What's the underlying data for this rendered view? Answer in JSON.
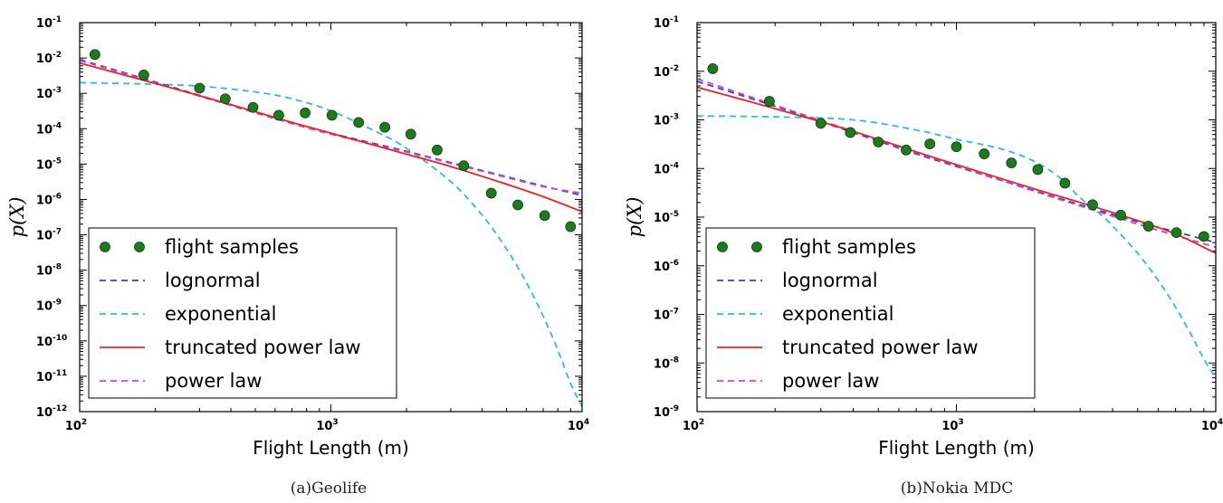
{
  "chart_data": [
    {
      "type": "scatter",
      "caption": "(a)Geolife",
      "xlabel": "Flight Length (m)",
      "ylabel": "p(X)",
      "xscale": "log",
      "yscale": "log",
      "xlim": [
        100,
        10000
      ],
      "ylim": [
        1e-12,
        0.1
      ],
      "x_ticks": [
        "2",
        "3",
        "4"
      ],
      "y_ticks": [
        "-12",
        "-11",
        "-10",
        "-9",
        "-8",
        "-7",
        "-6",
        "-5",
        "-4",
        "-3",
        "-2",
        "-1"
      ],
      "tick_base": "10",
      "legend_position": "lower-left",
      "grid": false,
      "series": [
        {
          "name": "flight samples",
          "kind": "points",
          "color": "#1f7a1f",
          "x": [
            115,
            180,
            300,
            380,
            490,
            620,
            790,
            1010,
            1290,
            1640,
            2080,
            2650,
            3380,
            4350,
            5550,
            7100,
            9000
          ],
          "y": [
            0.0125,
            0.0033,
            0.0014,
            0.0007,
            0.0004,
            0.00024,
            0.00028,
            0.00024,
            0.00015,
            0.00011,
            7e-05,
            2.5e-05,
            9e-06,
            1.5e-06,
            7e-07,
            3.5e-07,
            1.7e-07
          ]
        },
        {
          "name": "lognormal",
          "kind": "dashed",
          "color": "#3b3bd0",
          "x": [
            100,
            200,
            400,
            700,
            1000,
            2000,
            3000,
            5000,
            7000,
            10000
          ],
          "y": [
            0.009,
            0.0021,
            0.00047,
            0.00015,
            7.5e-05,
            2.3e-05,
            1.1e-05,
            4.4e-06,
            2.4e-06,
            1.3e-06
          ]
        },
        {
          "name": "exponential",
          "kind": "dashed",
          "color": "#2cc0c6",
          "x": [
            100,
            150,
            200,
            300,
            500,
            700,
            1000,
            1500,
            2000,
            3000,
            4000,
            5000,
            6000,
            7000,
            8000,
            9000,
            10000
          ],
          "y": [
            0.002,
            0.0019,
            0.0018,
            0.0016,
            0.0011,
            0.0007,
            0.00032,
            8.5e-05,
            2.8e-05,
            3.2e-06,
            3.6e-07,
            4e-08,
            4.5e-09,
            5e-10,
            5.6e-11,
            6.3e-12,
            1.4e-12
          ]
        },
        {
          "name": "truncated power law",
          "kind": "solid",
          "color": "#ee2222",
          "x": [
            100,
            200,
            400,
            700,
            1000,
            2000,
            3000,
            5000,
            7000,
            10000
          ],
          "y": [
            0.0072,
            0.0019,
            0.00048,
            0.00015,
            7.5e-05,
            1.9e-05,
            8.5e-06,
            2.7e-06,
            1.2e-06,
            4.5e-07
          ]
        },
        {
          "name": "power law",
          "kind": "dashed",
          "color": "#cc44cc",
          "x": [
            100,
            200,
            400,
            700,
            1000,
            2000,
            3000,
            5000,
            7000,
            10000
          ],
          "y": [
            0.0085,
            0.002,
            0.00045,
            0.00014,
            7e-05,
            2.2e-05,
            1.05e-05,
            4.2e-06,
            2.3e-06,
            1.5e-06
          ]
        }
      ]
    },
    {
      "type": "scatter",
      "caption": "(b)Nokia MDC",
      "xlabel": "Flight Length (m)",
      "ylabel": "p(X)",
      "xscale": "log",
      "yscale": "log",
      "xlim": [
        100,
        10000
      ],
      "ylim": [
        1e-09,
        0.1
      ],
      "x_ticks": [
        "2",
        "3",
        "4"
      ],
      "y_ticks": [
        "-9",
        "-8",
        "-7",
        "-6",
        "-5",
        "-4",
        "-3",
        "-2",
        "-1"
      ],
      "tick_base": "10",
      "legend_position": "lower-left",
      "grid": false,
      "series": [
        {
          "name": "flight samples",
          "kind": "points",
          "color": "#1f7a1f",
          "x": [
            115,
            190,
            300,
            390,
            500,
            640,
            790,
            1000,
            1280,
            1630,
            2060,
            2620,
            3350,
            4300,
            5500,
            7050,
            9000
          ],
          "y": [
            0.0113,
            0.0024,
            0.00085,
            0.00055,
            0.00035,
            0.00024,
            0.00032,
            0.00028,
            0.0002,
            0.00013,
            9.5e-05,
            5e-05,
            1.8e-05,
            1.1e-05,
            6.5e-06,
            4.8e-06,
            4e-06
          ]
        },
        {
          "name": "lognormal",
          "kind": "dashed",
          "color": "#3b3bd0",
          "x": [
            100,
            200,
            400,
            700,
            1000,
            2000,
            3000,
            5000,
            7000,
            10000
          ],
          "y": [
            0.0062,
            0.0019,
            0.00055,
            0.0002,
            0.00011,
            3.5e-05,
            1.8e-05,
            8e-06,
            5e-06,
            3e-06
          ]
        },
        {
          "name": "exponential",
          "kind": "dashed",
          "color": "#2cc0c6",
          "x": [
            100,
            200,
            400,
            700,
            1000,
            1500,
            2000,
            2500,
            3000,
            3500,
            4000,
            5000,
            6000,
            7000,
            8000,
            9000,
            10000
          ],
          "y": [
            0.0012,
            0.00115,
            0.001,
            0.00062,
            0.0004,
            0.00025,
            0.00014,
            6.5e-05,
            2.5e-05,
            1.3e-05,
            6.6e-06,
            1.8e-06,
            5e-07,
            1.4e-07,
            4e-08,
            1.2e-08,
            5e-09
          ]
        },
        {
          "name": "truncated power law",
          "kind": "solid",
          "color": "#ee2222",
          "x": [
            100,
            200,
            400,
            700,
            1000,
            2000,
            3000,
            5000,
            7000,
            10000
          ],
          "y": [
            0.0047,
            0.0017,
            0.00058,
            0.00022,
            0.00012,
            3.8e-05,
            2e-05,
            8.5e-06,
            4.5e-06,
            1.8e-06
          ]
        },
        {
          "name": "power law",
          "kind": "dashed",
          "color": "#cc44cc",
          "x": [
            100,
            200,
            400,
            700,
            1000,
            2000,
            3000,
            5000,
            7000,
            10000
          ],
          "y": [
            0.007,
            0.002,
            0.00058,
            0.00021,
            0.000115,
            3.4e-05,
            1.7e-05,
            7.2e-06,
            4.2e-06,
            2.4e-06
          ]
        }
      ]
    }
  ]
}
